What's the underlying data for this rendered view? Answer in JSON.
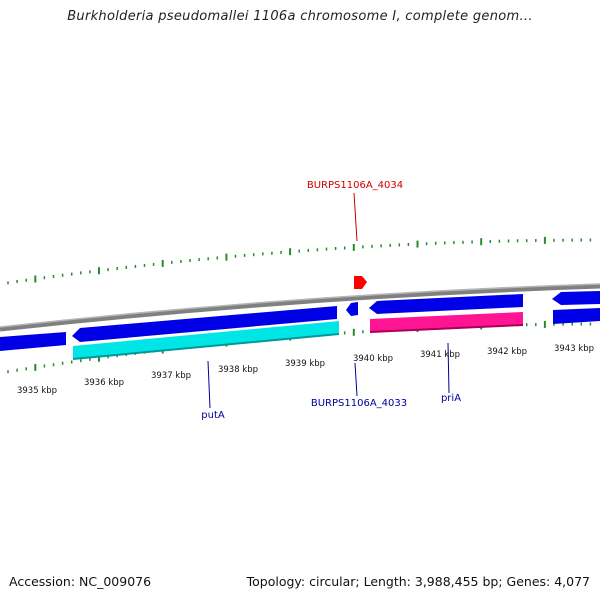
{
  "title": "Burkholderia pseudomallei 1106a chromosome I, complete genom...",
  "footer": {
    "accession": "Accession: NC_009076",
    "summary": "Topology: circular; Length: 3,988,455 bp; Genes: 4,077"
  },
  "colors": {
    "backbone": "#8a8a8a",
    "forward_gene": "#0000e6",
    "reverse_gene_1": "#00e6e6",
    "reverse_gene_2": "#ff1493",
    "tick": "#2a8a2a",
    "selected_marker": "#ff0000",
    "label_top": "#cc0000",
    "label_bottom": "#000099"
  },
  "scale_labels": [
    "3935 kbp",
    "3936 kbp",
    "3937 kbp",
    "3938 kbp",
    "3939 kbp",
    "3940 kbp",
    "3941 kbp",
    "3942 kbp",
    "3943 kbp"
  ],
  "gene_labels": {
    "top": "BURPS1106A_4034",
    "putA": "putA",
    "bottom_mid": "BURPS1106A_4033",
    "priA": "priA"
  }
}
